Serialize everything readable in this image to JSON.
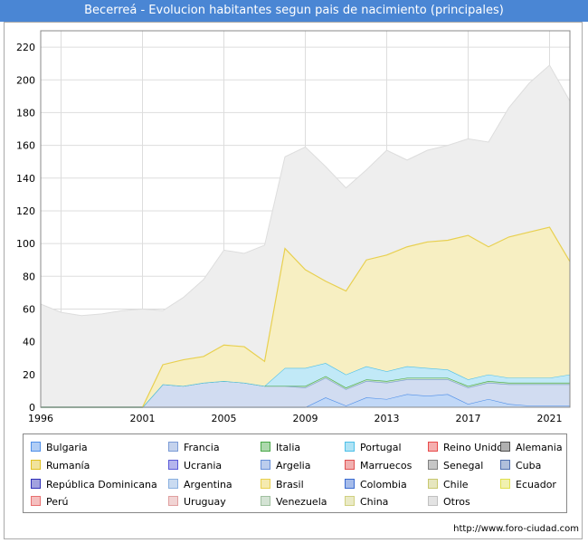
{
  "header": {
    "title": "Becerreá - Evolucion habitantes segun pais de nacimiento (principales)"
  },
  "footer": {
    "source": "http://www.foro-ciudad.com"
  },
  "chart_data": {
    "type": "area",
    "stacked": true,
    "title": "Becerreá - Evolucion habitantes segun pais de nacimiento (principales)",
    "xlabel": "",
    "ylabel": "",
    "xlim": [
      1996,
      2022
    ],
    "ylim": [
      0,
      230
    ],
    "x_ticks": [
      1996,
      2001,
      2005,
      2009,
      2013,
      2017,
      2021
    ],
    "y_ticks": [
      0,
      20,
      40,
      60,
      80,
      100,
      120,
      140,
      160,
      180,
      200,
      220
    ],
    "grid": true,
    "legend_position": "bottom",
    "x": [
      1996,
      1997,
      1998,
      1999,
      2000,
      2001,
      2002,
      2003,
      2004,
      2005,
      2006,
      2007,
      2008,
      2009,
      2010,
      2011,
      2012,
      2013,
      2014,
      2015,
      2016,
      2017,
      2018,
      2019,
      2020,
      2021,
      2022
    ],
    "total": [
      63,
      58,
      56,
      57,
      59,
      60,
      59,
      67,
      78,
      96,
      94,
      99,
      153,
      159,
      147,
      134,
      145,
      157,
      151,
      157,
      160,
      164,
      162,
      183,
      198,
      209,
      187
    ],
    "series": [
      {
        "name": "Bulgaria",
        "color": "#4f8fe8",
        "values": [
          0,
          0,
          0,
          0,
          0,
          0,
          0,
          0,
          0,
          0,
          0,
          0,
          0,
          0,
          6,
          1,
          6,
          5,
          8,
          7,
          8,
          2,
          5,
          2,
          1,
          1,
          1
        ]
      },
      {
        "name": "Francia",
        "color": "#7b9bd6",
        "values": [
          0,
          0,
          0,
          0,
          0,
          0,
          14,
          13,
          15,
          16,
          15,
          13,
          13,
          12,
          12,
          10,
          10,
          10,
          9,
          10,
          9,
          10,
          10,
          12,
          13,
          13,
          13
        ]
      },
      {
        "name": "Italia",
        "color": "#49a849",
        "values": [
          0,
          0,
          0,
          0,
          0,
          0,
          0,
          0,
          0,
          0,
          0,
          0,
          0,
          1,
          1,
          1,
          1,
          1,
          1,
          1,
          1,
          1,
          1,
          1,
          1,
          1,
          1
        ]
      },
      {
        "name": "Portugal",
        "color": "#4ec0e8",
        "values": [
          0,
          0,
          0,
          0,
          0,
          0,
          0,
          0,
          0,
          0,
          0,
          0,
          11,
          11,
          8,
          8,
          8,
          6,
          7,
          6,
          5,
          4,
          4,
          3,
          3,
          3,
          5
        ]
      },
      {
        "name": "Reino Unido",
        "color": "#e84a4a",
        "values": [
          0,
          0,
          0,
          0,
          0,
          0,
          0,
          0,
          0,
          0,
          0,
          0,
          0,
          0,
          0,
          0,
          0,
          0,
          0,
          0,
          0,
          0,
          0,
          0,
          0,
          0,
          0
        ]
      },
      {
        "name": "Alemania",
        "color": "#505050",
        "values": [
          0,
          0,
          0,
          0,
          0,
          0,
          0,
          0,
          0,
          0,
          0,
          0,
          0,
          0,
          0,
          0,
          0,
          0,
          0,
          0,
          0,
          0,
          0,
          0,
          0,
          0,
          0
        ]
      },
      {
        "name": "Rumanía",
        "color": "#e0c020",
        "values": [
          0,
          0,
          0,
          0,
          0,
          0,
          0,
          0,
          0,
          0,
          0,
          0,
          0,
          0,
          0,
          0,
          0,
          0,
          0,
          0,
          0,
          0,
          0,
          0,
          0,
          0,
          0
        ]
      },
      {
        "name": "Ucrania",
        "color": "#5a5ad8",
        "values": [
          0,
          0,
          0,
          0,
          0,
          0,
          0,
          0,
          0,
          0,
          0,
          0,
          0,
          0,
          0,
          0,
          0,
          0,
          0,
          0,
          0,
          0,
          0,
          0,
          0,
          0,
          0
        ]
      },
      {
        "name": "Argelia",
        "color": "#6890d8",
        "values": [
          0,
          0,
          0,
          0,
          0,
          0,
          0,
          0,
          0,
          0,
          0,
          0,
          0,
          0,
          0,
          0,
          0,
          0,
          0,
          0,
          0,
          0,
          0,
          0,
          0,
          0,
          0
        ]
      },
      {
        "name": "Marruecos",
        "color": "#e05050",
        "values": [
          0,
          0,
          0,
          0,
          0,
          0,
          0,
          0,
          0,
          0,
          0,
          0,
          0,
          0,
          0,
          0,
          0,
          0,
          0,
          0,
          0,
          0,
          0,
          0,
          0,
          0,
          0
        ]
      },
      {
        "name": "Senegal",
        "color": "#808080",
        "values": [
          0,
          0,
          0,
          0,
          0,
          0,
          0,
          0,
          0,
          0,
          0,
          0,
          0,
          0,
          0,
          0,
          0,
          0,
          0,
          0,
          0,
          0,
          0,
          0,
          0,
          0,
          0
        ]
      },
      {
        "name": "Cuba",
        "color": "#5070b0",
        "values": [
          0,
          0,
          0,
          0,
          0,
          0,
          0,
          0,
          0,
          0,
          0,
          0,
          0,
          0,
          0,
          0,
          0,
          0,
          0,
          0,
          0,
          0,
          0,
          0,
          0,
          0,
          0
        ]
      },
      {
        "name": "República Dominicana",
        "color": "#3030b8",
        "values": [
          0,
          0,
          0,
          0,
          0,
          0,
          0,
          0,
          0,
          0,
          0,
          0,
          0,
          0,
          0,
          0,
          0,
          0,
          0,
          0,
          0,
          0,
          0,
          0,
          0,
          0,
          0
        ]
      },
      {
        "name": "Argentina",
        "color": "#8ab0e0",
        "values": [
          0,
          0,
          0,
          0,
          0,
          0,
          0,
          0,
          0,
          0,
          0,
          0,
          0,
          0,
          0,
          0,
          0,
          0,
          0,
          0,
          0,
          0,
          0,
          0,
          0,
          0,
          0
        ]
      },
      {
        "name": "Brasil",
        "color": "#e8d050",
        "values": [
          0,
          0,
          0,
          0,
          0,
          0,
          12,
          16,
          16,
          22,
          22,
          15,
          73,
          60,
          50,
          51,
          65,
          71,
          73,
          77,
          79,
          88,
          78,
          86,
          89,
          92,
          69
        ]
      },
      {
        "name": "Colombia",
        "color": "#3a6ad0",
        "values": [
          0,
          0,
          0,
          0,
          0,
          0,
          0,
          0,
          0,
          0,
          0,
          0,
          0,
          0,
          0,
          0,
          0,
          0,
          0,
          0,
          0,
          0,
          0,
          0,
          0,
          0,
          0
        ]
      },
      {
        "name": "Chile",
        "color": "#c8c870",
        "values": [
          0,
          0,
          0,
          0,
          0,
          0,
          0,
          0,
          0,
          0,
          0,
          0,
          0,
          0,
          0,
          0,
          0,
          0,
          0,
          0,
          0,
          0,
          0,
          0,
          0,
          0,
          0
        ]
      },
      {
        "name": "Ecuador",
        "color": "#e0e050",
        "values": [
          0,
          0,
          0,
          0,
          0,
          0,
          0,
          0,
          0,
          0,
          0,
          0,
          0,
          0,
          0,
          0,
          0,
          0,
          0,
          0,
          0,
          0,
          0,
          0,
          0,
          0,
          0
        ]
      },
      {
        "name": "Perú",
        "color": "#e87070",
        "values": [
          0,
          0,
          0,
          0,
          0,
          0,
          0,
          0,
          0,
          0,
          0,
          0,
          0,
          0,
          0,
          0,
          0,
          0,
          0,
          0,
          0,
          0,
          0,
          0,
          0,
          0,
          0
        ]
      },
      {
        "name": "Uruguay",
        "color": "#e0a0a0",
        "values": [
          0,
          0,
          0,
          0,
          0,
          0,
          0,
          0,
          0,
          0,
          0,
          0,
          0,
          0,
          0,
          0,
          0,
          0,
          0,
          0,
          0,
          0,
          0,
          0,
          0,
          0,
          0
        ]
      },
      {
        "name": "Venezuela",
        "color": "#a0c0a0",
        "values": [
          0,
          0,
          0,
          0,
          0,
          0,
          0,
          0,
          0,
          0,
          0,
          0,
          0,
          0,
          0,
          0,
          0,
          0,
          0,
          0,
          0,
          0,
          0,
          0,
          0,
          0,
          0
        ]
      },
      {
        "name": "China",
        "color": "#d0d080",
        "values": [
          0,
          0,
          0,
          0,
          0,
          0,
          0,
          0,
          0,
          0,
          0,
          0,
          0,
          0,
          0,
          0,
          0,
          0,
          0,
          0,
          0,
          0,
          0,
          0,
          0,
          0,
          0
        ]
      },
      {
        "name": "Otros",
        "color": "#c0c0c0",
        "values": [
          0,
          0,
          0,
          0,
          0,
          0,
          0,
          0,
          0,
          0,
          0,
          0,
          0,
          0,
          0,
          0,
          0,
          0,
          0,
          0,
          0,
          0,
          0,
          0,
          0,
          0,
          0
        ]
      }
    ]
  }
}
